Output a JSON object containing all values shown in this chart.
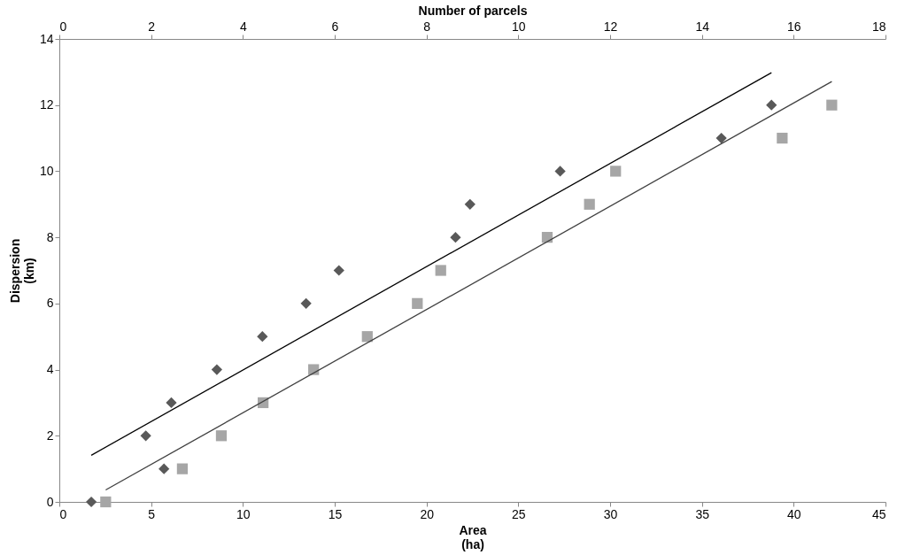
{
  "chart_data": {
    "type": "scatter",
    "xlabel": "Area\n(ha)",
    "x2label": "Number of parcels",
    "ylabel": "Dispersion\n(km)",
    "xlim": [
      0,
      45
    ],
    "xticks": [
      0,
      5,
      10,
      15,
      20,
      25,
      30,
      35,
      40,
      45
    ],
    "x2lim": [
      0,
      18
    ],
    "x2ticks": [
      0,
      2,
      4,
      6,
      8,
      10,
      12,
      14,
      16,
      18
    ],
    "ylim": [
      0,
      14
    ],
    "yticks": [
      0,
      2,
      4,
      6,
      8,
      10,
      12,
      14
    ],
    "grid": false,
    "series": [
      {
        "marker": "diamond",
        "color": "#595959",
        "x": [
          1.74,
          4.71,
          5.7,
          6.1,
          8.58,
          11.06,
          13.44,
          15.23,
          21.58,
          22.37,
          27.28,
          36.06,
          38.79
        ],
        "values": [
          0,
          2,
          1,
          3,
          4,
          5,
          6,
          7,
          8,
          9,
          10,
          11,
          12
        ]
      },
      {
        "type": "line",
        "line_style": "solid",
        "color": "#000000",
        "x": [
          1.74,
          38.79
        ],
        "values": [
          1.41,
          12.98
        ]
      },
      {
        "axis": "x2",
        "marker": "square",
        "color": "#a6a6a6",
        "x": [
          1.01,
          2.68,
          3.53,
          4.44,
          5.54,
          6.71,
          7.8,
          8.31,
          10.63,
          11.55,
          12.12,
          15.75,
          16.83
        ],
        "values": [
          0,
          1,
          2,
          3,
          4,
          5,
          6,
          7,
          8,
          9,
          10,
          11,
          12
        ]
      },
      {
        "type": "line",
        "axis": "x2",
        "line_style": "solid",
        "color": "#404040",
        "x": [
          1.01,
          16.83
        ],
        "values": [
          0.36,
          12.71
        ]
      }
    ]
  }
}
